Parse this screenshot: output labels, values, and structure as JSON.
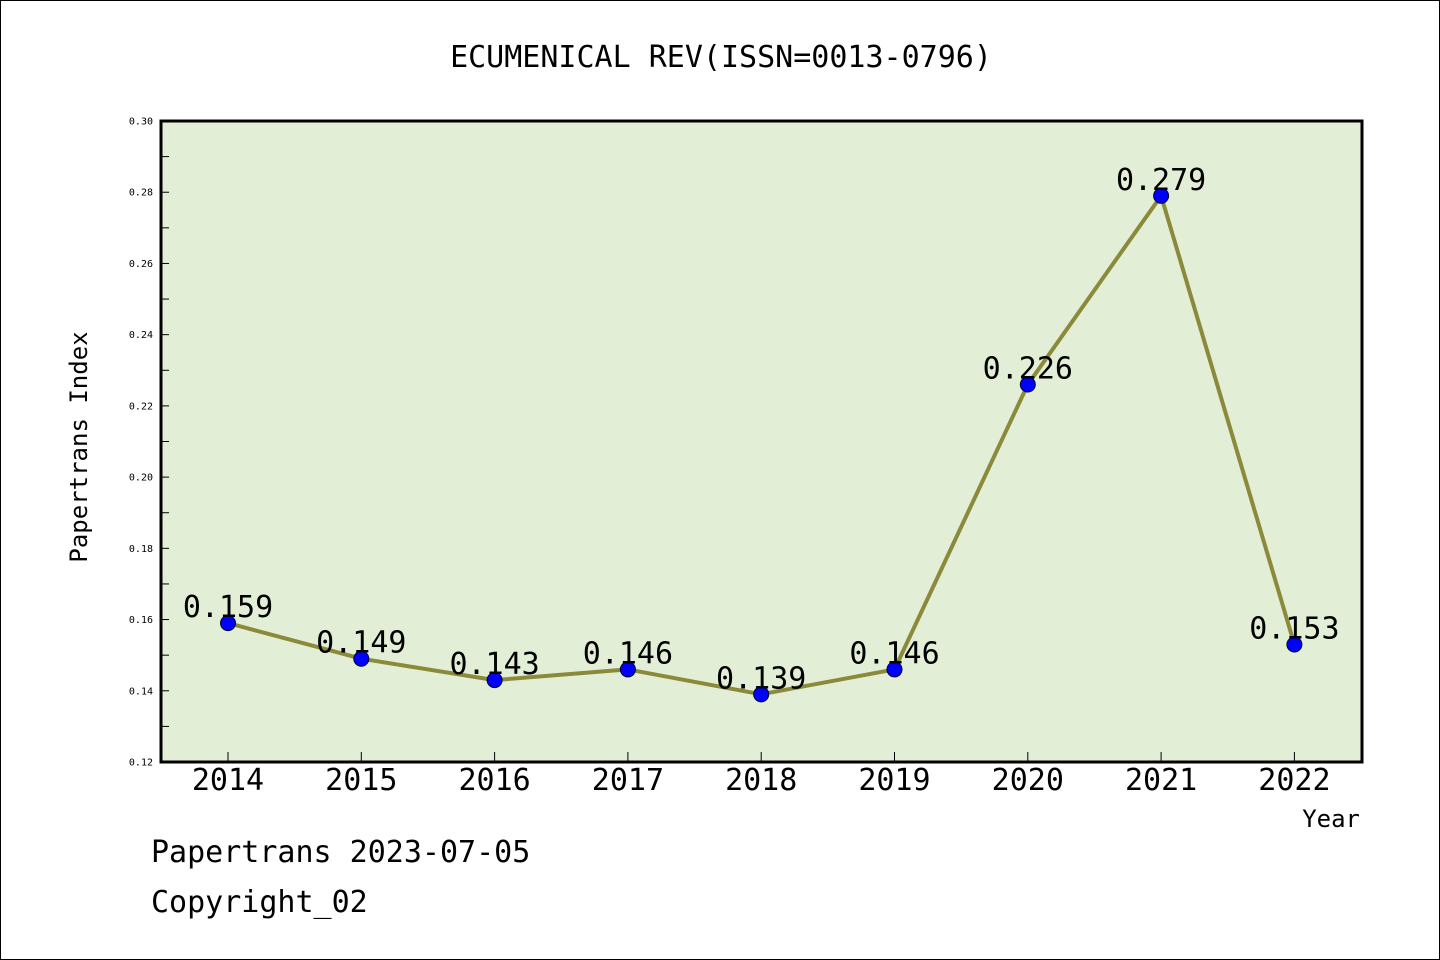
{
  "chart_data": {
    "type": "line",
    "title": "ECUMENICAL REV(ISSN=0013-0796)",
    "xlabel": "Year",
    "ylabel": "Papertrans Index",
    "categories": [
      "2014",
      "2015",
      "2016",
      "2017",
      "2018",
      "2019",
      "2020",
      "2021",
      "2022"
    ],
    "series": [
      {
        "values": [
          0.159,
          0.149,
          0.143,
          0.146,
          0.139,
          0.146,
          0.226,
          0.279,
          0.153
        ],
        "labels": [
          "0.159",
          "0.149",
          "0.143",
          "0.146",
          "0.139",
          "0.146",
          "0.226",
          "0.279",
          "0.153"
        ]
      }
    ],
    "ylim": [
      0.12,
      0.3
    ],
    "yticks": [
      "0.12",
      "0.14",
      "0.16",
      "0.18",
      "0.20",
      "0.22",
      "0.24",
      "0.26",
      "0.28",
      "0.30"
    ],
    "grid": false,
    "legend": "none",
    "colors": {
      "plot_background": "#e2efd6",
      "line": "#8b8a3a",
      "marker": "#0000ff"
    }
  },
  "footer": {
    "date_line": "Papertrans 2023-07-05",
    "copyright_line": "Copyright_02"
  }
}
